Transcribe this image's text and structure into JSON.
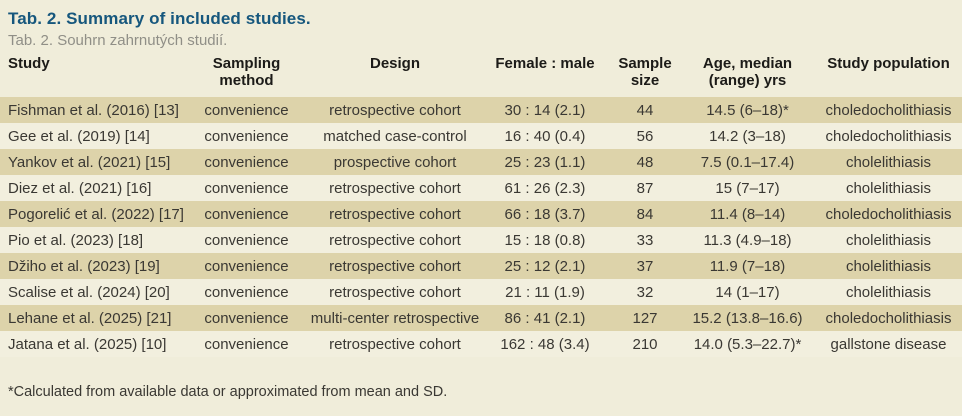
{
  "table": {
    "title": "Tab. 2. Summary of included studies.",
    "subtitle": "Tab. 2. Souhrn zahrnutých studií.",
    "columns": [
      "Study",
      "Sampling method",
      "Design",
      "Female : male",
      "Sample size",
      "Age, median (range) yrs",
      "Study population"
    ],
    "rows": [
      [
        "Fishman et al. (2016) [13]",
        "convenience",
        "retrospective cohort",
        "30 : 14 (2.1)",
        "44",
        "14.5 (6–18)*",
        "choledocholithiasis"
      ],
      [
        "Gee et al. (2019) [14]",
        "convenience",
        "matched case-control",
        "16 : 40 (0.4)",
        "56",
        "14.2 (3–18)",
        "choledocholithiasis"
      ],
      [
        "Yankov et al. (2021) [15]",
        "convenience",
        "prospective cohort",
        "25 : 23 (1.1)",
        "48",
        "7.5 (0.1–17.4)",
        "cholelithiasis"
      ],
      [
        "Diez et al. (2021) [16]",
        "convenience",
        "retrospective cohort",
        "61 : 26 (2.3)",
        "87",
        "15 (7–17)",
        "cholelithiasis"
      ],
      [
        "Pogorelić et al. (2022) [17]",
        "convenience",
        "retrospective cohort",
        "66 : 18 (3.7)",
        "84",
        "11.4 (8–14)",
        "choledocholithiasis"
      ],
      [
        "Pio et al. (2023) [18]",
        "convenience",
        "retrospective cohort",
        "15 : 18 (0.8)",
        "33",
        "11.3 (4.9–18)",
        "cholelithiasis"
      ],
      [
        "Džiho et al. (2023) [19]",
        "convenience",
        "retrospective cohort",
        "25 : 12 (2.1)",
        "37",
        "11.9 (7–18)",
        "cholelithiasis"
      ],
      [
        "Scalise et al. (2024) [20]",
        "convenience",
        "retrospective cohort",
        "21 : 11 (1.9)",
        "32",
        "14 (1–17)",
        "cholelithiasis"
      ],
      [
        "Lehane et al. (2025) [21]",
        "convenience",
        "multi-center retrospective",
        "86 : 41 (2.1)",
        "127",
        "15.2 (13.8–16.6)",
        "choledocholithiasis"
      ],
      [
        "Jatana et al. (2025) [10]",
        "convenience",
        "retrospective cohort",
        "162 : 48 (3.4)",
        "210",
        "14.0 (5.3–22.7)*",
        "gallstone disease"
      ]
    ],
    "footnote": "*Calculated from available data or approximated from mean and SD."
  },
  "colors": {
    "background": "#f0edda",
    "row_alt": "#ddd3aa",
    "row_light": "#f2efde",
    "title_accent": "#16577d",
    "subtitle_gray": "#908f87"
  }
}
